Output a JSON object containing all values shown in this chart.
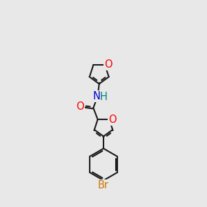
{
  "bg_color": "#e8e8e8",
  "bond_color": "#1a1a1a",
  "bond_width": 1.5,
  "dbo": 0.055,
  "atom_colors": {
    "O": "#ff0000",
    "N": "#0000cc",
    "H": "#008080",
    "Br": "#cc7700",
    "C": "#1a1a1a"
  },
  "font_size": 10.5
}
